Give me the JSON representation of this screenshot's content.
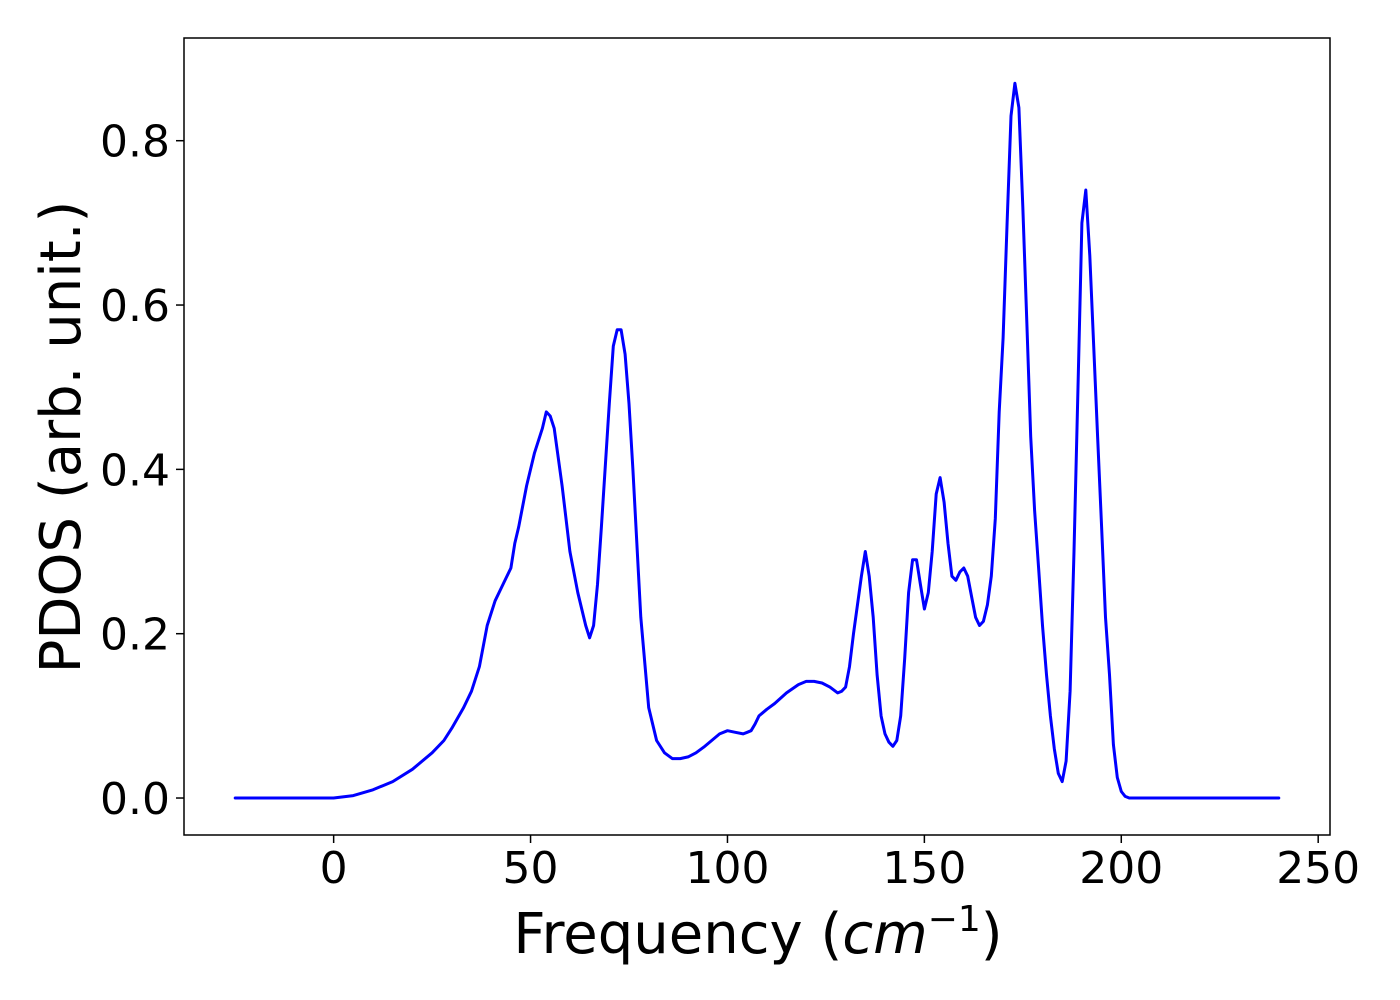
{
  "chart_data": {
    "type": "line",
    "title": "",
    "xlabel": "Frequency",
    "xlabel_unit": "cm",
    "xlabel_unit_exponent": "−1",
    "ylabel": "PDOS (arb. unit.)",
    "xlim": [
      -38,
      253
    ],
    "ylim": [
      -0.045,
      0.925
    ],
    "x_ticks": [
      0,
      50,
      100,
      150,
      200,
      250
    ],
    "x_tick_labels": [
      "0",
      "50",
      "100",
      "150",
      "200",
      "250"
    ],
    "y_ticks": [
      0.0,
      0.2,
      0.4,
      0.6,
      0.8
    ],
    "y_tick_labels": [
      "0.0",
      "0.2",
      "0.4",
      "0.6",
      "0.8"
    ],
    "grid": false,
    "legend": false,
    "series": [
      {
        "color": "#0000ff",
        "x": [
          -25,
          -15,
          -5,
          0,
          5,
          10,
          15,
          20,
          25,
          28,
          30,
          33,
          35,
          37,
          39,
          41,
          43,
          45,
          46,
          47,
          49,
          51,
          53,
          54,
          55,
          56,
          58,
          60,
          62,
          64,
          65,
          66,
          67,
          68,
          70,
          71,
          72,
          73,
          74,
          75,
          76,
          78,
          80,
          82,
          84,
          86,
          88,
          90,
          92,
          94,
          96,
          98,
          100,
          102,
          104,
          105,
          106,
          107,
          108,
          110,
          112,
          115,
          118,
          120,
          122,
          124,
          126,
          128,
          129,
          130,
          131,
          132,
          134,
          135,
          136,
          137,
          138,
          139,
          140,
          141,
          142,
          143,
          144,
          145,
          146,
          147,
          148,
          149,
          150,
          151,
          152,
          153,
          154,
          155,
          156,
          157,
          158,
          159,
          160,
          161,
          162,
          163,
          164,
          165,
          166,
          167,
          168,
          169,
          170,
          171,
          172,
          173,
          174,
          175,
          176,
          177,
          178,
          179,
          180,
          181,
          182,
          183,
          184,
          185,
          186,
          187,
          188,
          189,
          190,
          191,
          192,
          193,
          194,
          195,
          196,
          197,
          198,
          199,
          200,
          201,
          202,
          203,
          204,
          205,
          206,
          207,
          208,
          209,
          210,
          211,
          212,
          213,
          214,
          215,
          216,
          217,
          218,
          219,
          220,
          221,
          222,
          223,
          225,
          230,
          240
        ],
        "y": [
          0.0,
          0.0,
          0.0,
          0.0,
          0.003,
          0.01,
          0.02,
          0.035,
          0.055,
          0.07,
          0.085,
          0.11,
          0.13,
          0.16,
          0.21,
          0.24,
          0.26,
          0.28,
          0.31,
          0.33,
          0.38,
          0.42,
          0.45,
          0.47,
          0.465,
          0.45,
          0.38,
          0.3,
          0.25,
          0.21,
          0.195,
          0.21,
          0.26,
          0.33,
          0.48,
          0.55,
          0.57,
          0.57,
          0.54,
          0.48,
          0.4,
          0.22,
          0.11,
          0.07,
          0.055,
          0.048,
          0.048,
          0.05,
          0.055,
          0.062,
          0.07,
          0.078,
          0.082,
          0.08,
          0.078,
          0.08,
          0.082,
          0.09,
          0.1,
          0.108,
          0.115,
          0.128,
          0.138,
          0.142,
          0.142,
          0.14,
          0.135,
          0.128,
          0.13,
          0.135,
          0.16,
          0.2,
          0.27,
          0.3,
          0.27,
          0.22,
          0.15,
          0.1,
          0.078,
          0.068,
          0.063,
          0.07,
          0.1,
          0.17,
          0.25,
          0.29,
          0.29,
          0.26,
          0.23,
          0.25,
          0.3,
          0.37,
          0.39,
          0.36,
          0.31,
          0.27,
          0.265,
          0.275,
          0.28,
          0.27,
          0.245,
          0.22,
          0.21,
          0.215,
          0.235,
          0.27,
          0.34,
          0.47,
          0.56,
          0.7,
          0.83,
          0.87,
          0.84,
          0.72,
          0.58,
          0.44,
          0.35,
          0.28,
          0.21,
          0.15,
          0.1,
          0.06,
          0.03,
          0.02,
          0.045,
          0.13,
          0.3,
          0.5,
          0.7,
          0.74,
          0.66,
          0.55,
          0.44,
          0.33,
          0.22,
          0.15,
          0.065,
          0.025,
          0.008,
          0.002,
          0.0,
          0.0,
          0.0,
          0.0,
          0.0,
          0.0,
          0.0,
          0.0,
          0.0,
          0.0,
          0.0,
          0.0,
          0.0,
          0.0,
          0.0,
          0.0,
          0.0,
          0.0,
          0.0,
          0.0,
          0.0,
          0.0,
          0.0,
          0.0,
          0.0
        ]
      }
    ]
  }
}
